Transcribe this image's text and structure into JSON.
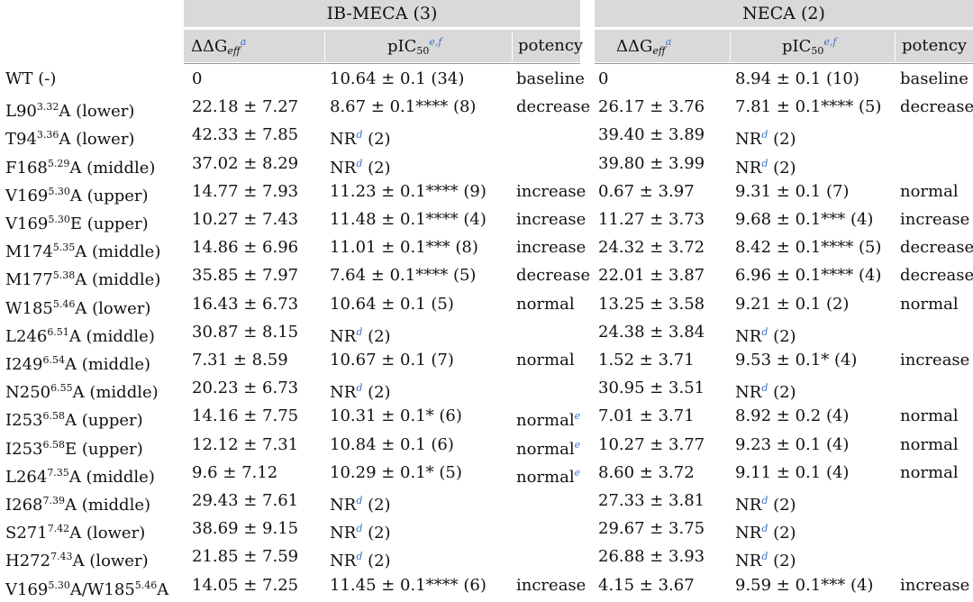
{
  "groups": [
    {
      "title": "IB-MECA",
      "compound": "(3)"
    },
    {
      "title": "NECA",
      "compound": "(2)"
    }
  ],
  "col_headers": {
    "ddg_main": "ΔΔG",
    "ddg_sub": "eff",
    "ddg_sup": "a",
    "pic_main": "pIC",
    "pic_sub": "50",
    "pic_sup": "e,f",
    "potency": "potency"
  },
  "rows": [
    {
      "pre": "WT (-)",
      "sup": "",
      "post": "",
      "ib_ddg": "0",
      "ib_pic": "10.64 ± 0.1 (34)",
      "ib_pic_sup": "",
      "ib_pic_post": "",
      "ib_pot": "baseline",
      "ib_pot_sup": "",
      "ne_ddg": "0",
      "ne_pic": "8.94 ± 0.1 (10)",
      "ne_pic_sup": "",
      "ne_pic_post": "",
      "ne_pot": "baseline"
    },
    {
      "pre": "L90",
      "sup": "3.32",
      "post": "A (lower)",
      "ib_ddg": "22.18 ± 7.27",
      "ib_pic": "8.67 ± 0.1**** (8)",
      "ib_pic_sup": "",
      "ib_pic_post": "",
      "ib_pot": "decrease",
      "ib_pot_sup": "",
      "ne_ddg": "26.17 ± 3.76",
      "ne_pic": "7.81 ± 0.1**** (5)",
      "ne_pic_sup": "",
      "ne_pic_post": "",
      "ne_pot": "decrease"
    },
    {
      "pre": "T94",
      "sup": "3.36",
      "post": "A (lower)",
      "ib_ddg": "42.33 ± 7.85",
      "ib_pic": "NR",
      "ib_pic_sup": "d",
      "ib_pic_post": " (2)",
      "ib_pot": "",
      "ib_pot_sup": "",
      "ne_ddg": "39.40 ± 3.89",
      "ne_pic": "NR",
      "ne_pic_sup": "d",
      "ne_pic_post": " (2)",
      "ne_pot": ""
    },
    {
      "pre": "F168",
      "sup": "5.29",
      "post": "A (middle)",
      "ib_ddg": "37.02 ± 8.29",
      "ib_pic": "NR",
      "ib_pic_sup": "d",
      "ib_pic_post": " (2)",
      "ib_pot": "",
      "ib_pot_sup": "",
      "ne_ddg": "39.80 ± 3.99",
      "ne_pic": "NR",
      "ne_pic_sup": "d",
      "ne_pic_post": " (2)",
      "ne_pot": ""
    },
    {
      "pre": "V169",
      "sup": "5.30",
      "post": "A (upper)",
      "ib_ddg": "14.77 ± 7.93",
      "ib_pic": "11.23 ± 0.1**** (9)",
      "ib_pic_sup": "",
      "ib_pic_post": "",
      "ib_pot": "increase",
      "ib_pot_sup": "",
      "ne_ddg": "0.67 ± 3.97",
      "ne_pic": "9.31 ± 0.1 (7)",
      "ne_pic_sup": "",
      "ne_pic_post": "",
      "ne_pot": "normal"
    },
    {
      "pre": "V169",
      "sup": "5.30",
      "post": "E (upper)",
      "ib_ddg": "10.27 ± 7.43",
      "ib_pic": "11.48 ± 0.1**** (4)",
      "ib_pic_sup": "",
      "ib_pic_post": "",
      "ib_pot": "increase",
      "ib_pot_sup": "",
      "ne_ddg": "11.27 ± 3.73",
      "ne_pic": "9.68 ± 0.1*** (4)",
      "ne_pic_sup": "",
      "ne_pic_post": "",
      "ne_pot": "increase"
    },
    {
      "pre": "M174",
      "sup": "5.35",
      "post": "A (middle)",
      "ib_ddg": "14.86 ± 6.96",
      "ib_pic": "11.01 ± 0.1*** (8)",
      "ib_pic_sup": "",
      "ib_pic_post": "",
      "ib_pot": "increase",
      "ib_pot_sup": "",
      "ne_ddg": "24.32 ± 3.72",
      "ne_pic": "8.42 ± 0.1**** (5)",
      "ne_pic_sup": "",
      "ne_pic_post": "",
      "ne_pot": "decrease"
    },
    {
      "pre": "M177",
      "sup": "5.38",
      "post": "A (middle)",
      "ib_ddg": "35.85 ± 7.97",
      "ib_pic": "7.64 ± 0.1**** (5)",
      "ib_pic_sup": "",
      "ib_pic_post": "",
      "ib_pot": "decrease",
      "ib_pot_sup": "",
      "ne_ddg": "22.01 ± 3.87",
      "ne_pic": "6.96 ± 0.1**** (4)",
      "ne_pic_sup": "",
      "ne_pic_post": "",
      "ne_pot": "decrease"
    },
    {
      "pre": "W185",
      "sup": "5.46",
      "post": "A (lower)",
      "ib_ddg": "16.43 ± 6.73",
      "ib_pic": "10.64 ± 0.1 (5)",
      "ib_pic_sup": "",
      "ib_pic_post": "",
      "ib_pot": "normal",
      "ib_pot_sup": "",
      "ne_ddg": "13.25 ± 3.58",
      "ne_pic": "9.21 ± 0.1 (2)",
      "ne_pic_sup": "",
      "ne_pic_post": "",
      "ne_pot": "normal"
    },
    {
      "pre": "L246",
      "sup": "6.51",
      "post": "A (middle)",
      "ib_ddg": "30.87 ± 8.15",
      "ib_pic": "NR",
      "ib_pic_sup": "d",
      "ib_pic_post": " (2)",
      "ib_pot": "",
      "ib_pot_sup": "",
      "ne_ddg": "24.38 ± 3.84",
      "ne_pic": "NR",
      "ne_pic_sup": "d",
      "ne_pic_post": " (2)",
      "ne_pot": ""
    },
    {
      "pre": "I249",
      "sup": "6.54",
      "post": "A (middle)",
      "ib_ddg": "7.31 ± 8.59",
      "ib_pic": "10.67 ± 0.1 (7)",
      "ib_pic_sup": "",
      "ib_pic_post": "",
      "ib_pot": "normal",
      "ib_pot_sup": "",
      "ne_ddg": "1.52 ± 3.71",
      "ne_pic": "9.53 ± 0.1* (4)",
      "ne_pic_sup": "",
      "ne_pic_post": "",
      "ne_pot": "increase"
    },
    {
      "pre": "N250",
      "sup": "6.55",
      "post": "A (middle)",
      "ib_ddg": "20.23 ± 6.73",
      "ib_pic": "NR",
      "ib_pic_sup": "d",
      "ib_pic_post": " (2)",
      "ib_pot": "",
      "ib_pot_sup": "",
      "ne_ddg": "30.95 ± 3.51",
      "ne_pic": "NR",
      "ne_pic_sup": "d",
      "ne_pic_post": " (2)",
      "ne_pot": ""
    },
    {
      "pre": "I253",
      "sup": "6.58",
      "post": "A (upper)",
      "ib_ddg": "14.16 ± 7.75",
      "ib_pic": "10.31 ± 0.1* (6)",
      "ib_pic_sup": "",
      "ib_pic_post": "",
      "ib_pot": "normal",
      "ib_pot_sup": "e",
      "ne_ddg": "7.01 ± 3.71",
      "ne_pic": "8.92 ± 0.2 (4)",
      "ne_pic_sup": "",
      "ne_pic_post": "",
      "ne_pot": "normal"
    },
    {
      "pre": "I253",
      "sup": "6.58",
      "post": "E (upper)",
      "ib_ddg": "12.12 ± 7.31",
      "ib_pic": "10.84 ± 0.1 (6)",
      "ib_pic_sup": "",
      "ib_pic_post": "",
      "ib_pot": "normal",
      "ib_pot_sup": "e",
      "ne_ddg": "10.27 ± 3.77",
      "ne_pic": "9.23 ± 0.1 (4)",
      "ne_pic_sup": "",
      "ne_pic_post": "",
      "ne_pot": "normal"
    },
    {
      "pre": "L264",
      "sup": "7.35",
      "post": "A (middle)",
      "ib_ddg": "9.6 ± 7.12",
      "ib_pic": "10.29 ± 0.1* (5)",
      "ib_pic_sup": "",
      "ib_pic_post": "",
      "ib_pot": "normal",
      "ib_pot_sup": "e",
      "ne_ddg": "8.60 ± 3.72",
      "ne_pic": "9.11 ± 0.1 (4)",
      "ne_pic_sup": "",
      "ne_pic_post": "",
      "ne_pot": "normal"
    },
    {
      "pre": "I268",
      "sup": "7.39",
      "post": "A (middle)",
      "ib_ddg": "29.43 ± 7.61",
      "ib_pic": "NR",
      "ib_pic_sup": "d",
      "ib_pic_post": " (2)",
      "ib_pot": "",
      "ib_pot_sup": "",
      "ne_ddg": "27.33 ± 3.81",
      "ne_pic": "NR",
      "ne_pic_sup": "d",
      "ne_pic_post": " (2)",
      "ne_pot": ""
    },
    {
      "pre": "S271",
      "sup": "7.42",
      "post": "A (lower)",
      "ib_ddg": "38.69 ± 9.15",
      "ib_pic": "NR",
      "ib_pic_sup": "d",
      "ib_pic_post": " (2)",
      "ib_pot": "",
      "ib_pot_sup": "",
      "ne_ddg": "29.67 ± 3.75",
      "ne_pic": "NR",
      "ne_pic_sup": "d",
      "ne_pic_post": " (2)",
      "ne_pot": ""
    },
    {
      "pre": "H272",
      "sup": "7.43",
      "post": "A (lower)",
      "ib_ddg": "21.85 ± 7.59",
      "ib_pic": "NR",
      "ib_pic_sup": "d",
      "ib_pic_post": " (2)",
      "ib_pot": "",
      "ib_pot_sup": "",
      "ne_ddg": "26.88 ± 3.93",
      "ne_pic": "NR",
      "ne_pic_sup": "d",
      "ne_pic_post": " (2)",
      "ne_pot": ""
    },
    {
      "pre": "V169",
      "sup": "5.30",
      "post": "A/W185",
      "sup2": "5.46",
      "post2": "A",
      "ib_ddg": "14.05 ± 7.25",
      "ib_pic": "11.45 ± 0.1**** (6)",
      "ib_pic_sup": "",
      "ib_pic_post": "",
      "ib_pot": "increase",
      "ib_pot_sup": "",
      "ne_ddg": "4.15 ± 3.67",
      "ne_pic": "9.59 ± 0.1*** (4)",
      "ne_pic_sup": "",
      "ne_pic_post": "",
      "ne_pot": "increase"
    }
  ]
}
